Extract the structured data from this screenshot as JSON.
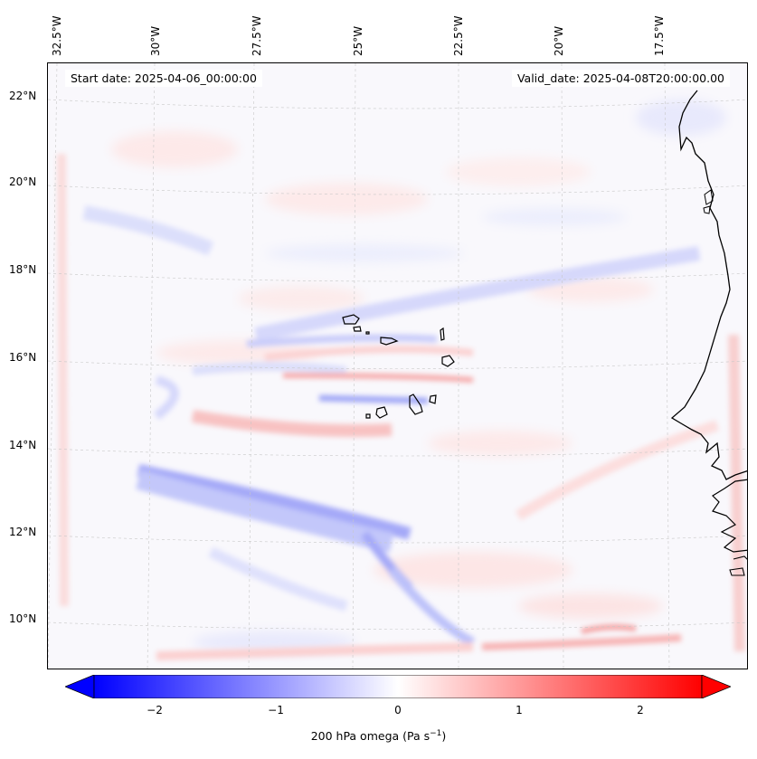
{
  "map": {
    "start_date_label": "Start date: 2025-04-06_00:00:00",
    "valid_date_label": "Valid_date: 2025-04-08T20:00:00.00",
    "longitude_ticks": [
      "32.5°W",
      "30°W",
      "27.5°W",
      "25°W",
      "22.5°W",
      "20°W",
      "17.5°W"
    ],
    "latitude_ticks": [
      "22°N",
      "20°N",
      "18°N",
      "16°N",
      "14°N",
      "12°N",
      "10°N"
    ],
    "field_variable": "200 hPa omega",
    "colormap": "bwr",
    "colors": {
      "negative": "#0000ff",
      "zero": "#ffffff",
      "positive": "#ff0000",
      "coastline": "#000000"
    }
  },
  "colorbar": {
    "ticks": [
      "−2",
      "−1",
      "0",
      "1",
      "2"
    ],
    "label_text": "200 hPa omega (Pa s",
    "label_exponent": "−1",
    "label_close": ")",
    "range": [
      -2.7,
      2.7
    ]
  }
}
